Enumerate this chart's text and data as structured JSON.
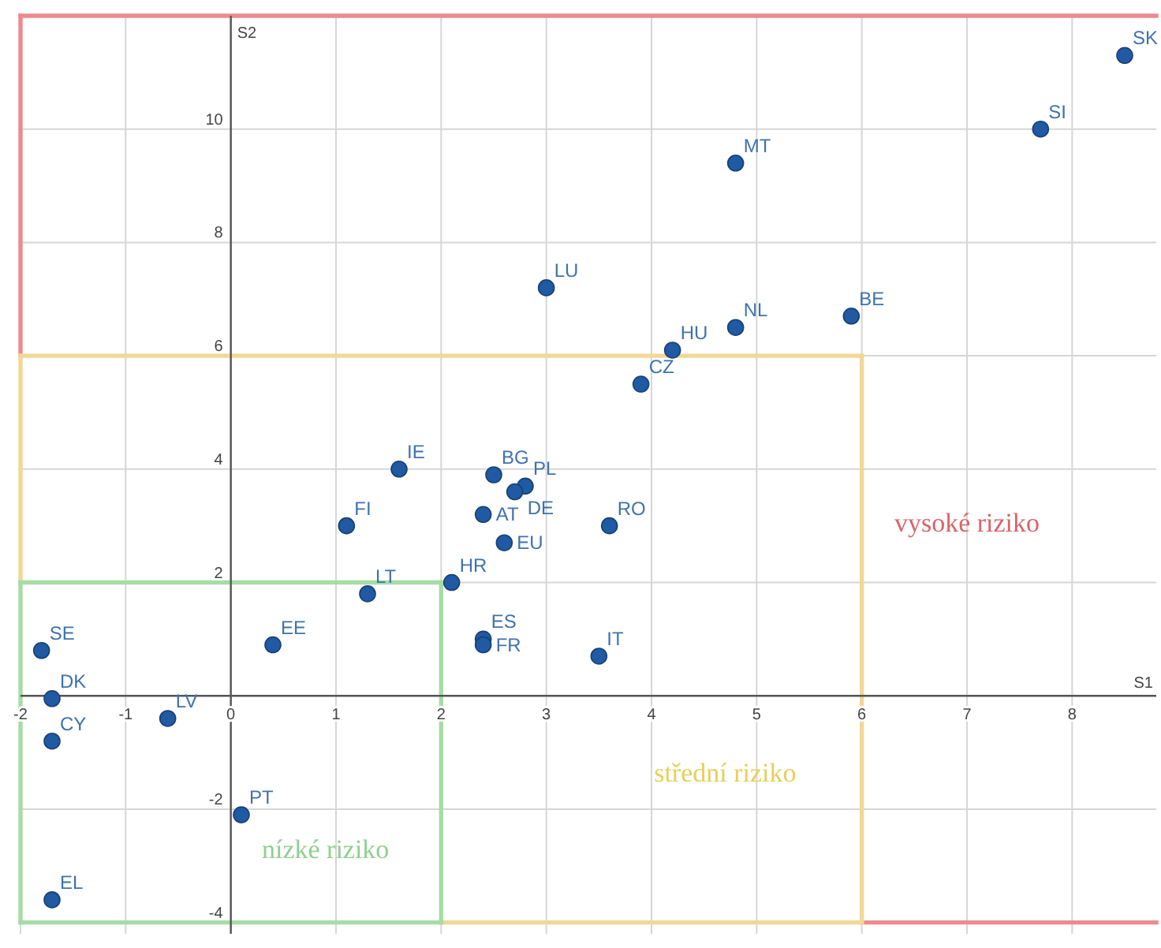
{
  "chart_data": {
    "type": "scatter",
    "xlabel": "S1",
    "ylabel": "S2",
    "xlim": [
      -2,
      8.8
    ],
    "ylim": [
      -4.2,
      12
    ],
    "xticks": [
      -2,
      -1,
      0,
      1,
      2,
      3,
      4,
      5,
      6,
      7,
      8
    ],
    "yticks": [
      -4,
      -2,
      2,
      4,
      6,
      8,
      10
    ],
    "grid": true,
    "legend": false,
    "marker": "circle",
    "ref_lines": [
      {
        "axis": "x",
        "value": -2,
        "color": "#ee8a8e"
      },
      {
        "axis": "y",
        "value": 12,
        "color": "#ee8a8e"
      },
      {
        "axis": "y",
        "value": -4,
        "color": "#ee8a8e"
      },
      {
        "axis": "x",
        "value": -2,
        "color": "#f2d796"
      },
      {
        "axis": "x",
        "value": 6,
        "color": "#f2d796"
      },
      {
        "axis": "y",
        "value": -4,
        "color": "#f2d796"
      },
      {
        "axis": "y",
        "value": 6,
        "color": "#f2d796"
      },
      {
        "axis": "x",
        "value": -2,
        "color": "#a6dca6"
      },
      {
        "axis": "x",
        "value": 2,
        "color": "#a6dca6"
      },
      {
        "axis": "y",
        "value": -4,
        "color": "#a6dca6"
      },
      {
        "axis": "y",
        "value": 2,
        "color": "#a6dca6"
      }
    ],
    "annotations": [
      "vysoké riziko",
      "střední riziko",
      "nízké riziko"
    ],
    "series": [
      {
        "name": "SK",
        "color": "#1f5aa3",
        "x": [
          8.5
        ],
        "values": [
          11.3
        ]
      },
      {
        "name": "SI",
        "color": "#1f5aa3",
        "x": [
          7.7
        ],
        "values": [
          10
        ]
      },
      {
        "name": "MT",
        "color": "#1f5aa3",
        "x": [
          4.8
        ],
        "values": [
          9.4
        ]
      },
      {
        "name": "LU",
        "color": "#1f5aa3",
        "x": [
          3.0
        ],
        "values": [
          7.2
        ]
      },
      {
        "name": "BE",
        "color": "#1f5aa3",
        "x": [
          5.9
        ],
        "values": [
          6.7
        ]
      },
      {
        "name": "NL",
        "color": "#1f5aa3",
        "x": [
          4.8
        ],
        "values": [
          6.5
        ]
      },
      {
        "name": "HU",
        "color": "#1f5aa3",
        "x": [
          4.2
        ],
        "values": [
          6.1
        ]
      },
      {
        "name": "CZ",
        "color": "#1f5aa3",
        "x": [
          3.9
        ],
        "values": [
          5.5
        ]
      },
      {
        "name": "IE",
        "color": "#1f5aa3",
        "x": [
          1.6
        ],
        "values": [
          4.0
        ]
      },
      {
        "name": "BG",
        "color": "#1f5aa3",
        "x": [
          2.5
        ],
        "values": [
          3.9
        ]
      },
      {
        "name": "PL",
        "color": "#1f5aa3",
        "x": [
          2.8
        ],
        "values": [
          3.7
        ]
      },
      {
        "name": "DE",
        "color": "#1f5aa3",
        "x": [
          2.7
        ],
        "values": [
          3.6
        ]
      },
      {
        "name": "AT",
        "color": "#1f5aa3",
        "x": [
          2.4
        ],
        "values": [
          3.2
        ]
      },
      {
        "name": "EU",
        "color": "#1f5aa3",
        "x": [
          2.6
        ],
        "values": [
          2.7
        ]
      },
      {
        "name": "RO",
        "color": "#1f5aa3",
        "x": [
          3.6
        ],
        "values": [
          3.0
        ]
      },
      {
        "name": "FI",
        "color": "#1f5aa3",
        "x": [
          1.1
        ],
        "values": [
          3.0
        ]
      },
      {
        "name": "HR",
        "color": "#1f5aa3",
        "x": [
          2.1
        ],
        "values": [
          2.0
        ]
      },
      {
        "name": "LT",
        "color": "#1f5aa3",
        "x": [
          1.3
        ],
        "values": [
          1.8
        ]
      },
      {
        "name": "ES",
        "color": "#1f5aa3",
        "x": [
          2.4
        ],
        "values": [
          1.0
        ]
      },
      {
        "name": "FR",
        "color": "#1f5aa3",
        "x": [
          2.4
        ],
        "values": [
          0.9
        ]
      },
      {
        "name": "IT",
        "color": "#1f5aa3",
        "x": [
          3.5
        ],
        "values": [
          0.7
        ]
      },
      {
        "name": "EE",
        "color": "#1f5aa3",
        "x": [
          0.4
        ],
        "values": [
          0.9
        ]
      },
      {
        "name": "SE",
        "color": "#1f5aa3",
        "x": [
          -1.8
        ],
        "values": [
          0.8
        ]
      },
      {
        "name": "DK",
        "color": "#1f5aa3",
        "x": [
          -1.7
        ],
        "values": [
          -0.05
        ]
      },
      {
        "name": "LV",
        "color": "#1f5aa3",
        "x": [
          -0.6
        ],
        "values": [
          -0.4
        ]
      },
      {
        "name": "CY",
        "color": "#1f5aa3",
        "x": [
          -1.7
        ],
        "values": [
          -0.8
        ]
      },
      {
        "name": "PT",
        "color": "#1f5aa3",
        "x": [
          0.1
        ],
        "values": [
          -2.1
        ]
      },
      {
        "name": "EL",
        "color": "#1f5aa3",
        "x": [
          -1.7
        ],
        "values": [
          -3.6
        ]
      }
    ]
  }
}
